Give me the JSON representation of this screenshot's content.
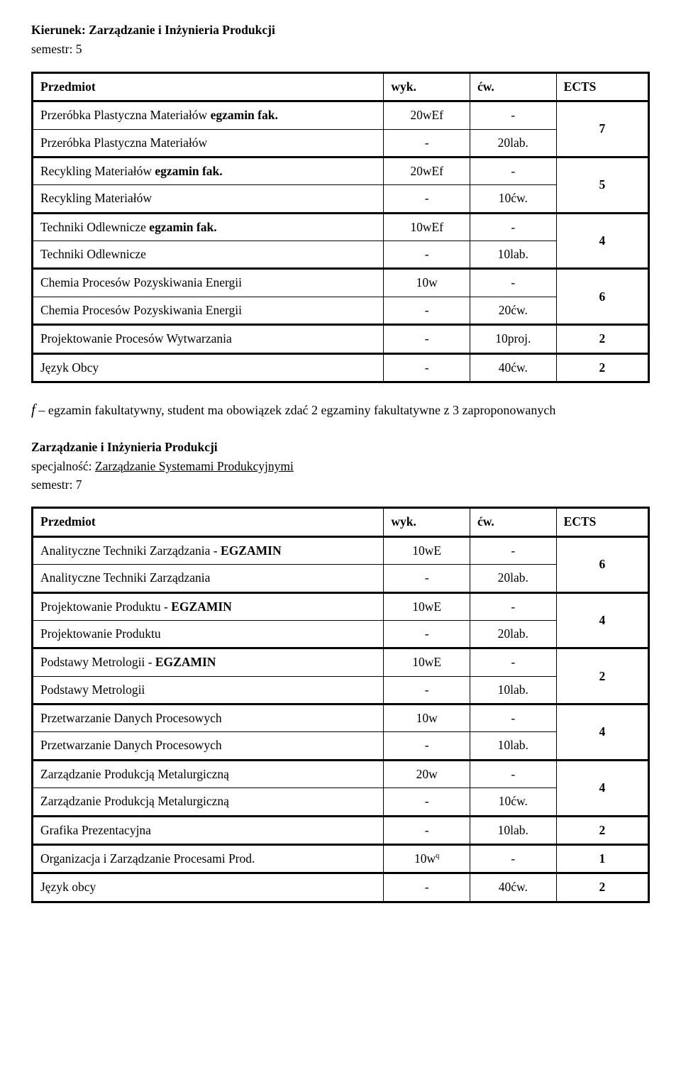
{
  "sec1": {
    "title": "Kierunek: Zarządzanie i Inżynieria Produkcji",
    "semester": "semestr: 5",
    "th_subject": "Przedmiot",
    "th_wyk": "wyk.",
    "th_cw": "ćw.",
    "th_ects": "ECTS",
    "rows": {
      "r1a_sub": "Przeróbka Plastyczna Materiałów ",
      "r1a_bold": "egzamin fak.",
      "r1a_wyk": "20wEf",
      "r1a_cw": "-",
      "r1b_sub": "Przeróbka Plastyczna Materiałów",
      "r1b_wyk": "-",
      "r1b_cw": "20lab.",
      "r1_ects": "7",
      "r2a_sub": "Recykling Materiałów ",
      "r2a_bold": "egzamin fak.",
      "r2a_wyk": "20wEf",
      "r2a_cw": "-",
      "r2b_sub": "Recykling Materiałów",
      "r2b_wyk": "-",
      "r2b_cw": "10ćw.",
      "r2_ects": "5",
      "r3a_sub": "Techniki Odlewnicze ",
      "r3a_bold": "egzamin fak.",
      "r3a_wyk": "10wEf",
      "r3a_cw": "-",
      "r3b_sub": "Techniki Odlewnicze",
      "r3b_wyk": "-",
      "r3b_cw": "10lab.",
      "r3_ects": "4",
      "r4a_sub": "Chemia Procesów Pozyskiwania Energii",
      "r4a_wyk": "10w",
      "r4a_cw": "-",
      "r4b_sub": "Chemia Procesów Pozyskiwania Energii",
      "r4b_wyk": "-",
      "r4b_cw": "20ćw.",
      "r4_ects": "6",
      "r5_sub": "Projektowanie Procesów Wytwarzania",
      "r5_wyk": "-",
      "r5_cw": "10proj.",
      "r5_ects": "2",
      "r6_sub": "Język Obcy",
      "r6_wyk": "-",
      "r6_cw": "40ćw.",
      "r6_ects": "2"
    }
  },
  "note": {
    "f": "f",
    "text": " – egzamin fakultatywny, student ma obowiązek zdać 2 egzaminy fakultatywne z 3 zaproponowanych"
  },
  "sec2": {
    "title": "Zarządzanie i Inżynieria Produkcji",
    "spec_prefix": "specjalność: ",
    "spec": "Zarządzanie Systemami Produkcyjnymi",
    "semester": "semestr: 7",
    "th_subject": "Przedmiot",
    "th_wyk": "wyk.",
    "th_cw": "ćw.",
    "th_ects": "ECTS",
    "rows": {
      "r1a_sub": "Analityczne Techniki Zarządzania - ",
      "r1a_bold": "EGZAMIN",
      "r1a_wyk": "10wE",
      "r1a_cw": "-",
      "r1b_sub": "Analityczne Techniki Zarządzania",
      "r1b_wyk": "-",
      "r1b_cw": "20lab.",
      "r1_ects": "6",
      "r2a_sub": "Projektowanie Produktu - ",
      "r2a_bold": "EGZAMIN",
      "r2a_wyk": "10wE",
      "r2a_cw": "-",
      "r2b_sub": "Projektowanie Produktu",
      "r2b_wyk": "-",
      "r2b_cw": "20lab.",
      "r2_ects": "4",
      "r3a_sub": "Podstawy Metrologii - ",
      "r3a_bold": "EGZAMIN",
      "r3a_wyk": "10wE",
      "r3a_cw": "-",
      "r3b_sub": "Podstawy Metrologii",
      "r3b_wyk": "-",
      "r3b_cw": "10lab.",
      "r3_ects": "2",
      "r4a_sub": "Przetwarzanie Danych Procesowych",
      "r4a_wyk": "10w",
      "r4a_cw": "-",
      "r4b_sub": "Przetwarzanie Danych Procesowych",
      "r4b_wyk": "-",
      "r4b_cw": "10lab.",
      "r4_ects": "4",
      "r5a_sub": "Zarządzanie Produkcją Metalurgiczną",
      "r5a_wyk": "20w",
      "r5a_cw": "-",
      "r5b_sub": "Zarządzanie Produkcją Metalurgiczną",
      "r5b_wyk": "-",
      "r5b_cw": "10ćw.",
      "r5_ects": "4",
      "r6_sub": "Grafika Prezentacyjna",
      "r6_wyk": "-",
      "r6_cw": "10lab.",
      "r6_ects": "2",
      "r7_sub": "Organizacja i Zarządzanie Procesami Prod.",
      "r7_wyk_a": "10w",
      "r7_wyk_q": "q",
      "r7_cw": "-",
      "r7_ects": "1",
      "r8_sub": "Język obcy",
      "r8_wyk": "-",
      "r8_cw": "40ćw.",
      "r8_ects": "2"
    }
  }
}
